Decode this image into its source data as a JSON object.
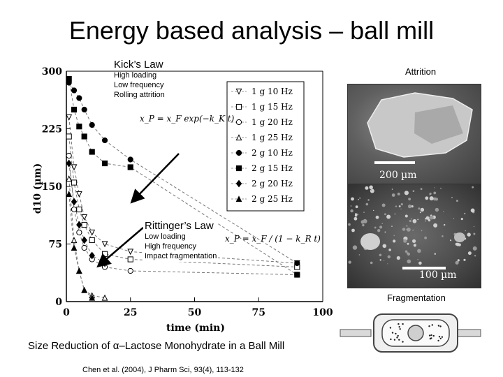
{
  "slide": {
    "title": "Energy based analysis – ball mill",
    "caption": "Size Reduction of α–Lactose Monohydrate in a Ball Mill",
    "citation": "Chen et al. (2004), J Pharm Sci, 93(4), 113-132"
  },
  "annotations": {
    "kick": {
      "heading": "Kick’s Law",
      "lines": [
        "High loading",
        "Low frequency",
        "Rolling attrition"
      ],
      "equation": "x_P = x_F exp(−k_K t)"
    },
    "rittinger": {
      "heading": "Rittinger’s Law",
      "lines": [
        "Low loading",
        "High frequency",
        "Impact fragmentation"
      ],
      "equation": "x_P = x_F / (1 − k_R t)"
    }
  },
  "photos": {
    "attrition_label": "Attrition",
    "fragmentation_label": "Fragmentation",
    "scale_top": "200 µm",
    "scale_bottom": "100 µm"
  },
  "chart_data": {
    "type": "scatter",
    "title": "",
    "xlabel": "time (min)",
    "ylabel": "d10 (µm)",
    "xlim": [
      0,
      100
    ],
    "ylim": [
      0,
      300
    ],
    "xticks": [
      0,
      25,
      50,
      75,
      100
    ],
    "yticks": [
      0,
      75,
      150,
      225,
      300
    ],
    "legend_position": "top-right",
    "series": [
      {
        "name": "1 g 10 Hz",
        "marker": "triangle-open",
        "x": [
          1,
          3,
          5,
          7,
          10,
          15,
          25,
          90
        ],
        "y": [
          240,
          175,
          140,
          110,
          90,
          75,
          65,
          50
        ]
      },
      {
        "name": "1 g 15 Hz",
        "marker": "square-open",
        "x": [
          1,
          3,
          5,
          7,
          10,
          15,
          25,
          90
        ],
        "y": [
          215,
          155,
          120,
          100,
          80,
          62,
          55,
          45
        ]
      },
      {
        "name": "1 g 20 Hz",
        "marker": "circle-open",
        "x": [
          1,
          3,
          5,
          7,
          10,
          15,
          25,
          90
        ],
        "y": [
          190,
          120,
          90,
          70,
          55,
          45,
          40,
          35
        ]
      },
      {
        "name": "1 g 25 Hz",
        "marker": "triangle-up-open",
        "x": [
          1,
          3,
          5,
          7,
          10,
          15
        ],
        "y": [
          160,
          80,
          40,
          15,
          8,
          5
        ]
      },
      {
        "name": "2 g 10 Hz",
        "marker": "circle-filled",
        "x": [
          1,
          3,
          5,
          7,
          10,
          15,
          25,
          90
        ],
        "y": [
          285,
          275,
          265,
          250,
          230,
          210,
          185,
          50
        ]
      },
      {
        "name": "2 g 15 Hz",
        "marker": "square-filled",
        "x": [
          1,
          3,
          5,
          7,
          10,
          15,
          25,
          90
        ],
        "y": [
          290,
          250,
          228,
          215,
          195,
          180,
          175,
          35
        ]
      },
      {
        "name": "2 g 20 Hz",
        "marker": "diamond-filled",
        "x": [
          1,
          3,
          5,
          7,
          10,
          15
        ],
        "y": [
          180,
          130,
          100,
          80,
          60,
          50
        ]
      },
      {
        "name": "2 g 25 Hz",
        "marker": "triangle-filled",
        "x": [
          1,
          3,
          5,
          7,
          10
        ],
        "y": [
          140,
          70,
          40,
          15,
          5
        ]
      }
    ]
  }
}
